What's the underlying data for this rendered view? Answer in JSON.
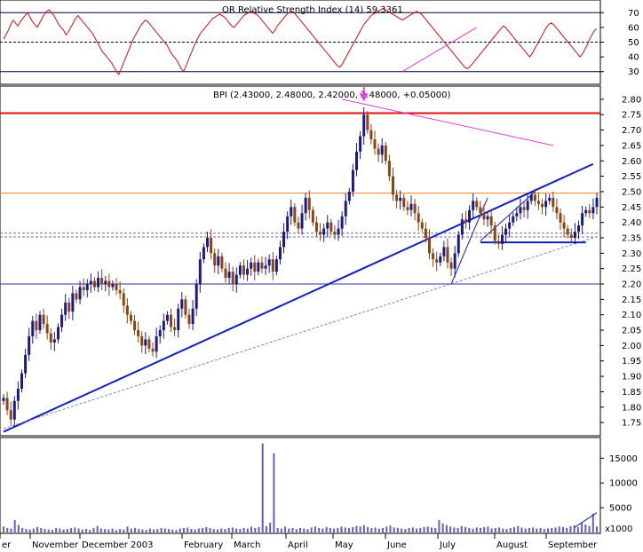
{
  "chart_data": {
    "type": "stock-candlestick-with-indicators",
    "colors": {
      "background": "#ffffff",
      "candle_up": "#1a1a8a",
      "candle_down": "#8b4513",
      "rsi_line": "#d01010",
      "resistance_line": "#e01010",
      "orange_line": "#f08020",
      "trend_line": "#1020c0",
      "magenta_line": "#e040e0",
      "volume_bar": "#6060c0"
    },
    "rsi_panel": {
      "header": "OR Relative Strength Index (14) 59.3361",
      "yticks": [
        30,
        40,
        50,
        60,
        70
      ],
      "ylim": [
        22,
        78
      ],
      "reference_lines": [
        {
          "value": 70,
          "style": "solid"
        },
        {
          "value": 50,
          "style": "dashed"
        },
        {
          "value": 30,
          "style": "solid"
        }
      ],
      "series": [
        52,
        55,
        58,
        62,
        65,
        63,
        61,
        64,
        66,
        68,
        70,
        67,
        64,
        62,
        60,
        63,
        66,
        69,
        71,
        72,
        70,
        68,
        65,
        62,
        60,
        58,
        55,
        57,
        60,
        63,
        66,
        68,
        66,
        64,
        62,
        60,
        58,
        56,
        53,
        50,
        47,
        44,
        42,
        40,
        38,
        36,
        33,
        30,
        28,
        32,
        36,
        40,
        44,
        48,
        52,
        55,
        58,
        61,
        63,
        65,
        64,
        62,
        60,
        58,
        56,
        54,
        52,
        50,
        48,
        45,
        42,
        40,
        38,
        35,
        32,
        30,
        34,
        38,
        42,
        46,
        50,
        53,
        56,
        58,
        60,
        62,
        64,
        66,
        67,
        68,
        69,
        68,
        67,
        65,
        63,
        61,
        60,
        62,
        64,
        66,
        68,
        69,
        70,
        71,
        70,
        69,
        68,
        66,
        64,
        62,
        60,
        58,
        56,
        58,
        61,
        63,
        65,
        67,
        69,
        70,
        71,
        70,
        68,
        66,
        64,
        62,
        60,
        58,
        56,
        54,
        52,
        50,
        48,
        46,
        44,
        42,
        40,
        38,
        36,
        34,
        33,
        35,
        38,
        41,
        44,
        47,
        50,
        53,
        56,
        59,
        62,
        64,
        66,
        68,
        69,
        70,
        71,
        72,
        73,
        72,
        71,
        70,
        69,
        68,
        67,
        66,
        65,
        66,
        67,
        68,
        69,
        70,
        71,
        70,
        69,
        67,
        65,
        63,
        61,
        59,
        57,
        55,
        53,
        51,
        49,
        47,
        45,
        43,
        41,
        39,
        37,
        35,
        33,
        32,
        33,
        35,
        37,
        39,
        41,
        43,
        45,
        47,
        49,
        51,
        53,
        55,
        57,
        59,
        61,
        60,
        58,
        56,
        54,
        52,
        50,
        48,
        46,
        44,
        42,
        40,
        42,
        45,
        48,
        51,
        54,
        57,
        60,
        62,
        63,
        62,
        60,
        58,
        56,
        54,
        52,
        50,
        48,
        46,
        44,
        42,
        40,
        42,
        45,
        48,
        52,
        55,
        58,
        59
      ],
      "annotations": [
        {
          "type": "trend",
          "from": [
            166,
            30
          ],
          "to": [
            197,
            60
          ]
        }
      ]
    },
    "price_panel": {
      "header": "BPI (2.43000, 2.48000, 2.42000, 2.48000, +0.05000)",
      "yticks": [
        1.75,
        1.8,
        1.85,
        1.9,
        1.95,
        2.0,
        2.05,
        2.1,
        2.15,
        2.2,
        2.25,
        2.3,
        2.35,
        2.4,
        2.45,
        2.5,
        2.55,
        2.6,
        2.65,
        2.7,
        2.75,
        2.8
      ],
      "ylim": [
        1.71,
        2.84
      ],
      "closes": [
        1.83,
        1.79,
        1.76,
        1.82,
        1.86,
        1.91,
        1.97,
        2.03,
        2.08,
        2.05,
        2.1,
        2.07,
        2.04,
        2.01,
        2.02,
        2.06,
        2.1,
        2.14,
        2.11,
        2.17,
        2.15,
        2.19,
        2.18,
        2.2,
        2.21,
        2.19,
        2.22,
        2.2,
        2.21,
        2.19,
        2.2,
        2.18,
        2.17,
        2.13,
        2.1,
        2.08,
        2.05,
        2.03,
        2.0,
        2.02,
        1.99,
        1.98,
        2.03,
        2.05,
        2.08,
        2.1,
        2.06,
        2.05,
        2.12,
        2.15,
        2.1,
        2.07,
        2.12,
        2.2,
        2.28,
        2.32,
        2.35,
        2.3,
        2.26,
        2.29,
        2.25,
        2.22,
        2.24,
        2.2,
        2.23,
        2.26,
        2.23,
        2.25,
        2.27,
        2.24,
        2.27,
        2.25,
        2.26,
        2.28,
        2.24,
        2.28,
        2.32,
        2.37,
        2.42,
        2.45,
        2.4,
        2.38,
        2.43,
        2.48,
        2.44,
        2.4,
        2.37,
        2.36,
        2.38,
        2.4,
        2.37,
        2.36,
        2.38,
        2.42,
        2.47,
        2.5,
        2.57,
        2.63,
        2.68,
        2.75,
        2.7,
        2.67,
        2.64,
        2.62,
        2.65,
        2.6,
        2.55,
        2.49,
        2.47,
        2.48,
        2.45,
        2.44,
        2.46,
        2.43,
        2.4,
        2.38,
        2.35,
        2.3,
        2.28,
        2.27,
        2.29,
        2.32,
        2.27,
        2.25,
        2.3,
        2.36,
        2.41,
        2.4,
        2.44,
        2.47,
        2.45,
        2.43,
        2.41,
        2.42,
        2.39,
        2.34,
        2.33,
        2.36,
        2.38,
        2.4,
        2.42,
        2.43,
        2.45,
        2.44,
        2.47,
        2.49,
        2.47,
        2.46,
        2.45,
        2.47,
        2.48,
        2.45,
        2.43,
        2.4,
        2.38,
        2.36,
        2.35,
        2.37,
        2.39,
        2.43,
        2.44,
        2.43,
        2.45,
        2.48
      ],
      "horizontal_lines": [
        {
          "value": 2.755,
          "color": "resistance_line",
          "style": "solid",
          "width": 2
        },
        {
          "value": 2.495,
          "color": "orange_line",
          "style": "solid",
          "width": 1
        },
        {
          "value": 2.365,
          "color": "#707090",
          "style": "dashed",
          "width": 1
        },
        {
          "value": 2.353,
          "color": "#707090",
          "style": "dashed",
          "width": 1
        },
        {
          "value": 2.2,
          "color": "#3030a0",
          "style": "solid",
          "width": 1
        }
      ],
      "trendlines": [
        {
          "from": [
            0,
            1.72
          ],
          "to": [
            162,
            2.59
          ],
          "color": "trend_line",
          "width": 2
        },
        {
          "from": [
            0,
            1.73
          ],
          "to": [
            162,
            2.35
          ],
          "color": "#8080d0",
          "style": "dashed",
          "width": 1
        },
        {
          "from": [
            93,
            2.8
          ],
          "to": [
            151,
            2.65
          ],
          "color": "magenta_line",
          "width": 1
        },
        {
          "from": [
            123,
            2.2
          ],
          "to": [
            133,
            2.48
          ],
          "color": "trend_line",
          "width": 1
        },
        {
          "from": [
            131,
            2.34
          ],
          "to": [
            146,
            2.5
          ],
          "color": "trend_line",
          "width": 1
        },
        {
          "from": [
            131,
            2.335
          ],
          "to": [
            160,
            2.335
          ],
          "color": "trend_line",
          "width": 2
        }
      ],
      "marker": {
        "type": "down-arrow",
        "x_index": 99,
        "color": "magenta_line"
      }
    },
    "volume_panel": {
      "yticks": [
        5000,
        10000,
        15000
      ],
      "tick_labels": [
        "5000",
        "10000",
        "15000"
      ],
      "bottom_label": "x1000",
      "ylim": [
        0,
        19000
      ],
      "values": [
        1200,
        900,
        800,
        2500,
        1500,
        900,
        700,
        600,
        800,
        1100,
        900,
        700,
        600,
        500,
        900,
        800,
        600,
        700,
        900,
        1000,
        800,
        600,
        700,
        500,
        900,
        1300,
        800,
        700,
        600,
        800,
        500,
        700,
        600,
        1200,
        800,
        900,
        700,
        600,
        500,
        800,
        600,
        700,
        900,
        800,
        700,
        600,
        500,
        800,
        900,
        1000,
        700,
        600,
        800,
        900,
        1100,
        900,
        700,
        600,
        800,
        700,
        900,
        1000,
        800,
        700,
        900,
        800,
        1200,
        900,
        1100,
        18000,
        1300,
        2000,
        16000,
        900,
        800,
        1200,
        800,
        900,
        700,
        900,
        800,
        700,
        1000,
        1200,
        900,
        800,
        1100,
        900,
        800,
        900,
        1200,
        1000,
        900,
        1100,
        1300,
        1200,
        1500,
        1100,
        900,
        1000,
        800,
        900,
        1200,
        1400,
        1000,
        900,
        800,
        700,
        900,
        1000,
        800,
        900,
        1100,
        1200,
        1000,
        900,
        2500,
        1800,
        1500,
        1200,
        1000,
        900,
        1300,
        1100,
        900,
        800,
        1000,
        900,
        1100,
        1200,
        800,
        900,
        1000,
        800,
        700,
        900,
        1100,
        1300,
        1000,
        800,
        900,
        1000,
        800,
        900,
        700,
        800,
        900,
        1000,
        1200,
        1100,
        900,
        1300,
        1400,
        1100,
        1900,
        1600,
        1300,
        3800,
        1200
      ],
      "annotations": [
        {
          "type": "trend",
          "from": [
            152,
            1000
          ],
          "to": [
            158,
            4000
          ]
        }
      ]
    },
    "x_axis": {
      "labels": [
        "er",
        "November",
        "December",
        "2003",
        "February",
        "March",
        "April",
        "May",
        "June",
        "July",
        "August",
        "September"
      ]
    }
  }
}
